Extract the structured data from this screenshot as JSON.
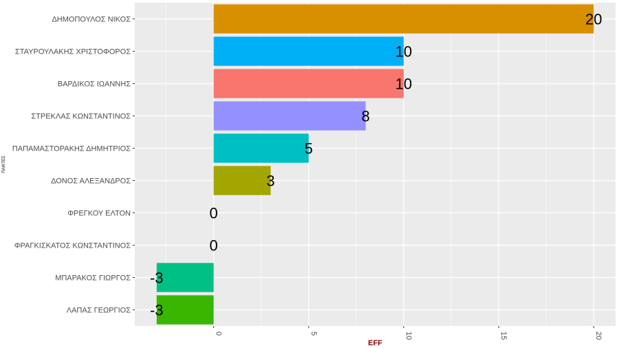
{
  "chart_data": {
    "type": "bar",
    "orientation": "horizontal",
    "categories": [
      "ΔΗΜΟΠΟΥΛΟΣ ΝΙΚΟΣ",
      "ΣΤΑΥΡΟΥΛΑΚΗΣ ΧΡΙΣΤΟΦΟΡΟΣ",
      "ΒΑΡΔΙΚΟΣ ΙΩΑΝΝΗΣ",
      "ΣΤΡΕΚΛΑΣ ΚΩΝΣΤΑΝΤΙΝΟΣ",
      "ΠΑΠΑΜΑΣΤΟΡΑΚΗΣ ΔΗΜΗΤΡΙΟΣ",
      "ΔΟΝΟΣ ΑΛΕΞΑΝΔΡΟΣ",
      "ΦΡΕΓΚΟΥ ΕΛΤΟΝ",
      "ΦΡΑΓΚΙΣΚΑΤΟΣ ΚΩΝΣΤΑΝΤΙΝΟΣ",
      "ΜΠΑΡΑΚΟΣ ΓΙΩΡΓΟΣ",
      "ΛΑΠΑΣ ΓΕΩΡΓΙΟΣ"
    ],
    "values": [
      20,
      10,
      10,
      8,
      5,
      3,
      0,
      0,
      -3,
      -3
    ],
    "data_labels": [
      "20",
      "10",
      "10",
      "8",
      "5",
      "3",
      "0",
      "0",
      "-3",
      "-3"
    ],
    "colors": [
      "#D89000",
      "#00B0F6",
      "#F8766D",
      "#9590FF",
      "#00BFC4",
      "#A3A500",
      "#E76BF3",
      "#FF62BC",
      "#00C085",
      "#39B600"
    ],
    "xlabel": "EFF",
    "ylabel": "ΠΑΙΚΤΕΣ",
    "xlim": [
      -4.15,
      21.15
    ],
    "xticks": [
      0,
      5,
      10,
      15,
      20
    ],
    "xtick_labels": [
      "0",
      "5",
      "10",
      "15",
      "20"
    ],
    "grid": true,
    "legend": "none",
    "xlabel_color": "#8B0000",
    "panel_color": "#EBEBEB"
  }
}
